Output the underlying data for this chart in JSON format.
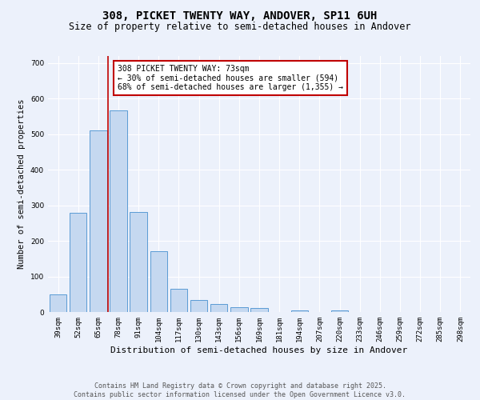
{
  "title1": "308, PICKET TWENTY WAY, ANDOVER, SP11 6UH",
  "title2": "Size of property relative to semi-detached houses in Andover",
  "xlabel": "Distribution of semi-detached houses by size in Andover",
  "ylabel": "Number of semi-detached properties",
  "categories": [
    "39sqm",
    "52sqm",
    "65sqm",
    "78sqm",
    "91sqm",
    "104sqm",
    "117sqm",
    "130sqm",
    "143sqm",
    "156sqm",
    "169sqm",
    "181sqm",
    "194sqm",
    "207sqm",
    "220sqm",
    "233sqm",
    "246sqm",
    "259sqm",
    "272sqm",
    "285sqm",
    "298sqm"
  ],
  "values": [
    50,
    278,
    510,
    566,
    281,
    172,
    65,
    33,
    22,
    13,
    11,
    0,
    5,
    0,
    5,
    0,
    0,
    0,
    0,
    0,
    0
  ],
  "bar_color": "#c5d8f0",
  "bar_edge_color": "#5b9bd5",
  "vline_x_index": 2.5,
  "vline_color": "#c00000",
  "annotation_text": "308 PICKET TWENTY WAY: 73sqm\n← 30% of semi-detached houses are smaller (594)\n68% of semi-detached houses are larger (1,355) →",
  "annotation_box_color": "#ffffff",
  "annotation_box_edge": "#c00000",
  "ylim": [
    0,
    720
  ],
  "yticks": [
    0,
    100,
    200,
    300,
    400,
    500,
    600,
    700
  ],
  "background_color": "#ecf1fb",
  "grid_color": "#ffffff",
  "footer_text": "Contains HM Land Registry data © Crown copyright and database right 2025.\nContains public sector information licensed under the Open Government Licence v3.0.",
  "title1_fontsize": 10,
  "title2_fontsize": 8.5,
  "xlabel_fontsize": 8,
  "ylabel_fontsize": 7.5,
  "tick_fontsize": 6.5,
  "annot_fontsize": 7,
  "footer_fontsize": 6
}
